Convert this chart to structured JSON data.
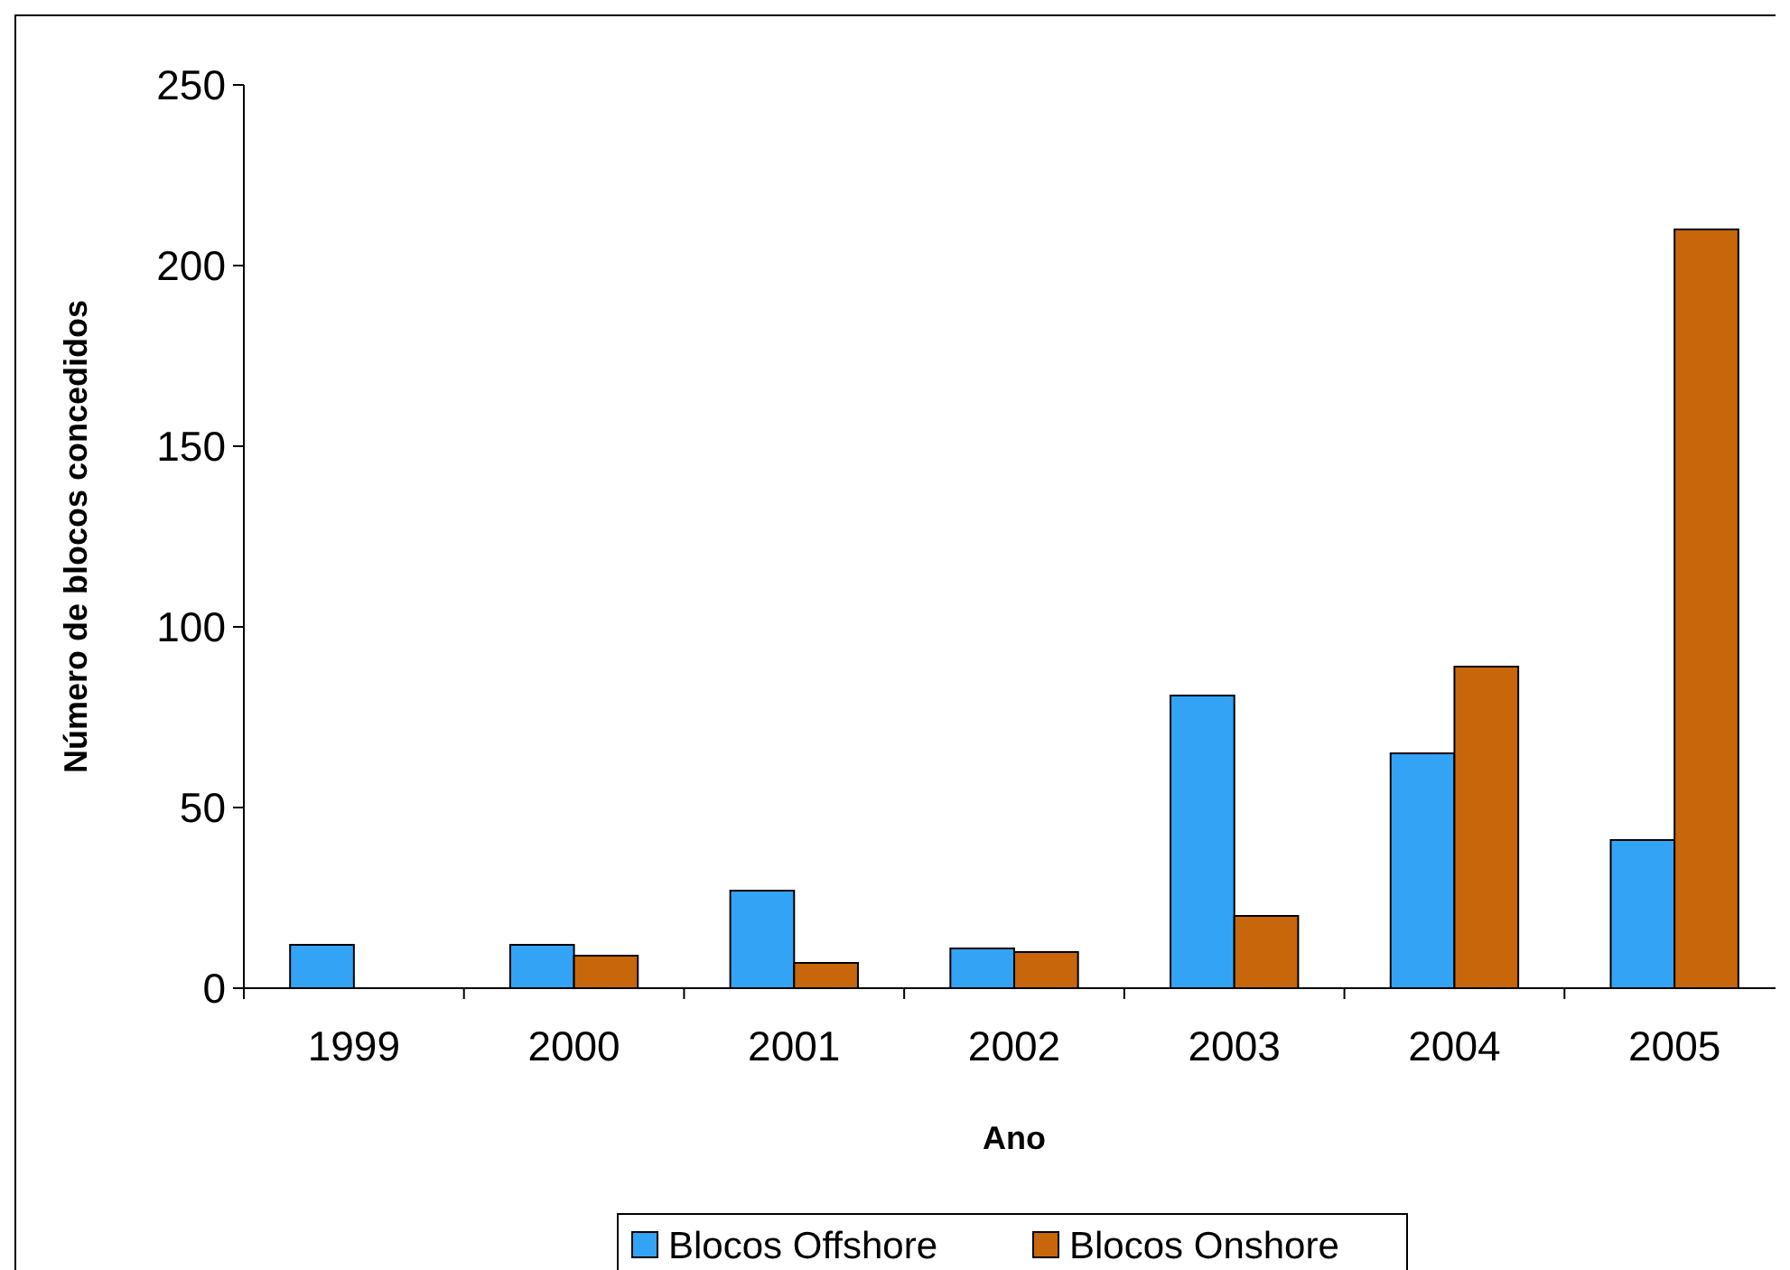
{
  "chart_data": {
    "type": "bar",
    "xlabel": "Ano",
    "ylabel": "Número de blocos concedidos",
    "categories": [
      "1999",
      "2000",
      "2001",
      "2002",
      "2003",
      "2004",
      "2005"
    ],
    "series": [
      {
        "name": "Blocos Offshore",
        "color": "#33a3f5",
        "values": [
          12,
          12,
          27,
          11,
          81,
          65,
          41
        ]
      },
      {
        "name": "Blocos Onshore",
        "color": "#c8660c",
        "values": [
          0,
          9,
          7,
          10,
          20,
          89,
          210
        ]
      }
    ],
    "ylim": [
      0,
      250
    ],
    "yticks": [
      0,
      50,
      100,
      150,
      200,
      250
    ],
    "grid": false,
    "legend": "bottom"
  }
}
